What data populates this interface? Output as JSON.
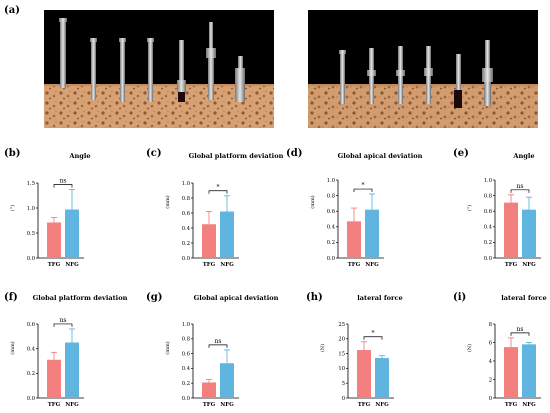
{
  "figure": {
    "panel_a_label": "(a)",
    "colors": {
      "TFG": "#f47f7f",
      "NFG": "#5fb5e0"
    }
  },
  "chart_data": [
    {
      "panel": "(b)",
      "type": "bar",
      "title": "Angle",
      "ylabel": "(°)",
      "categories": [
        "TFG",
        "NFG"
      ],
      "values": [
        0.71,
        0.97
      ],
      "errors": [
        0.1,
        0.4
      ],
      "ylim": [
        0.0,
        1.5
      ],
      "yticks": [
        0.0,
        0.5,
        1.0,
        1.5
      ],
      "significance": "ns"
    },
    {
      "panel": "(c)",
      "type": "bar",
      "title": "Global platform deviation",
      "ylabel": "(mm)",
      "categories": [
        "TFG",
        "NFG"
      ],
      "values": [
        0.45,
        0.62
      ],
      "errors": [
        0.17,
        0.21
      ],
      "ylim": [
        0.0,
        1.0
      ],
      "yticks": [
        0.0,
        0.2,
        0.4,
        0.6,
        0.8,
        1.0
      ],
      "significance": "*"
    },
    {
      "panel": "(d)",
      "type": "bar",
      "title": "Global apical deviation",
      "ylabel": "(mm)",
      "categories": [
        "TFG",
        "NFG"
      ],
      "values": [
        0.47,
        0.62
      ],
      "errors": [
        0.17,
        0.2
      ],
      "ylim": [
        0.0,
        1.0
      ],
      "yticks": [
        0.0,
        0.2,
        0.4,
        0.6,
        0.8,
        1.0
      ],
      "significance": "*"
    },
    {
      "panel": "(e)",
      "type": "bar",
      "title": "Angle",
      "ylabel": "(°)",
      "categories": [
        "TFG",
        "NFG"
      ],
      "values": [
        0.71,
        0.62
      ],
      "errors": [
        0.1,
        0.16
      ],
      "ylim": [
        0.0,
        1.0
      ],
      "yticks": [
        0.0,
        0.2,
        0.4,
        0.6,
        0.8,
        1.0
      ],
      "significance": "ns"
    },
    {
      "panel": "(f)",
      "type": "bar",
      "title": "Global platform deviation",
      "ylabel": "(mm)",
      "categories": [
        "TFG",
        "NFG"
      ],
      "values": [
        0.31,
        0.45
      ],
      "errors": [
        0.06,
        0.11
      ],
      "ylim": [
        0.0,
        0.6
      ],
      "yticks": [
        0.0,
        0.2,
        0.4,
        0.6
      ],
      "significance": "ns"
    },
    {
      "panel": "(g)",
      "type": "bar",
      "title": "Global apical deviation",
      "ylabel": "(mm)",
      "categories": [
        "TFG",
        "NFG"
      ],
      "values": [
        0.21,
        0.47
      ],
      "errors": [
        0.04,
        0.18
      ],
      "ylim": [
        0.0,
        1.0
      ],
      "yticks": [
        0.0,
        0.2,
        0.4,
        0.6,
        0.8,
        1.0
      ],
      "significance": "ns"
    },
    {
      "panel": "(h)",
      "type": "bar",
      "title": "lateral force",
      "ylabel": "(N)",
      "categories": [
        "TFG",
        "NFG"
      ],
      "values": [
        16.2,
        13.5
      ],
      "errors": [
        2.8,
        0.8
      ],
      "ylim": [
        0,
        25
      ],
      "yticks": [
        0,
        5,
        10,
        15,
        20,
        25
      ],
      "significance": "*"
    },
    {
      "panel": "(i)",
      "type": "bar",
      "title": "lateral force",
      "ylabel": "(N)",
      "categories": [
        "TFG",
        "NFG"
      ],
      "values": [
        5.5,
        5.8
      ],
      "errors": [
        1.0,
        0.2
      ],
      "ylim": [
        0,
        8
      ],
      "yticks": [
        0,
        2,
        4,
        6,
        8
      ],
      "significance": "ns"
    }
  ]
}
